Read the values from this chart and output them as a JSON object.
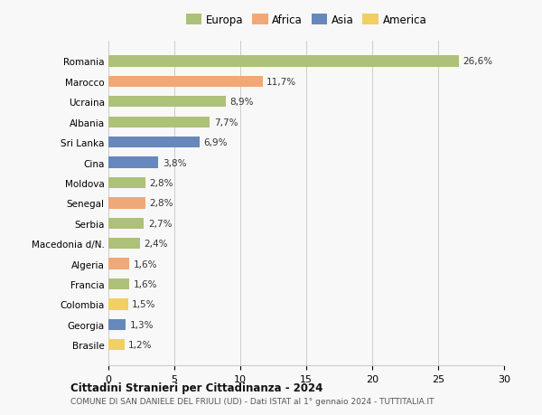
{
  "countries": [
    "Romania",
    "Marocco",
    "Ucraina",
    "Albania",
    "Sri Lanka",
    "Cina",
    "Moldova",
    "Senegal",
    "Serbia",
    "Macedonia d/N.",
    "Algeria",
    "Francia",
    "Colombia",
    "Georgia",
    "Brasile"
  ],
  "values": [
    26.6,
    11.7,
    8.9,
    7.7,
    6.9,
    3.8,
    2.8,
    2.8,
    2.7,
    2.4,
    1.6,
    1.6,
    1.5,
    1.3,
    1.2
  ],
  "labels": [
    "26,6%",
    "11,7%",
    "8,9%",
    "7,7%",
    "6,9%",
    "3,8%",
    "2,8%",
    "2,8%",
    "2,7%",
    "2,4%",
    "1,6%",
    "1,6%",
    "1,5%",
    "1,3%",
    "1,2%"
  ],
  "continents": [
    "Europa",
    "Africa",
    "Europa",
    "Europa",
    "Asia",
    "Asia",
    "Europa",
    "Africa",
    "Europa",
    "Europa",
    "Africa",
    "Europa",
    "America",
    "Asia",
    "America"
  ],
  "colors": {
    "Europa": "#adc178",
    "Africa": "#f0a878",
    "Asia": "#6688bb",
    "America": "#f0d060"
  },
  "xlim": [
    0,
    30
  ],
  "xticks": [
    0,
    5,
    10,
    15,
    20,
    25,
    30
  ],
  "title": "Cittadini Stranieri per Cittadinanza - 2024",
  "subtitle": "COMUNE DI SAN DANIELE DEL FRIULI (UD) - Dati ISTAT al 1° gennaio 2024 - TUTTITALIA.IT",
  "background_color": "#f8f8f8",
  "grid_color": "#cccccc",
  "bar_height": 0.55
}
